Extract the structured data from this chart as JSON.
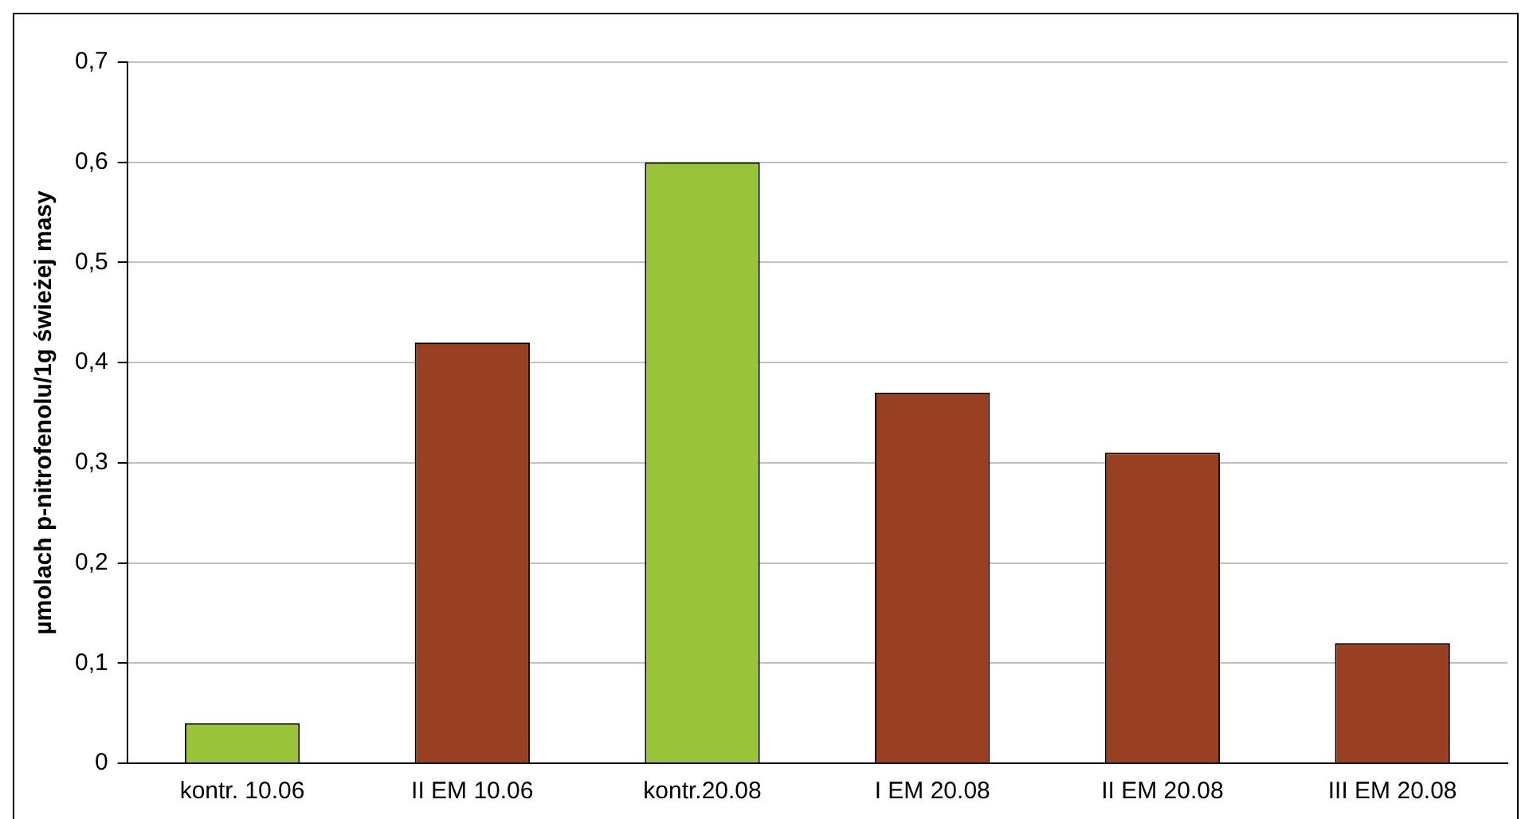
{
  "chart_data": {
    "type": "bar",
    "ylabel": "µmolach p-nitrofenolu/1g świeżej masy",
    "categories": [
      "kontr. 10.06",
      "II EM 10.06",
      "kontr.20.08",
      "I EM 20.08",
      "II EM 20.08",
      "III EM 20.08"
    ],
    "values": [
      0.04,
      0.42,
      0.6,
      0.37,
      0.31,
      0.12
    ],
    "colors": [
      "#99c43a",
      "#993f22",
      "#99c43a",
      "#993f22",
      "#993f22",
      "#993f22"
    ],
    "ylim": [
      0,
      0.7
    ],
    "yticks": [
      {
        "value": 0,
        "label": "0"
      },
      {
        "value": 0.1,
        "label": "0,1"
      },
      {
        "value": 0.2,
        "label": "0,2"
      },
      {
        "value": 0.3,
        "label": "0,3"
      },
      {
        "value": 0.4,
        "label": "0,4"
      },
      {
        "value": 0.5,
        "label": "0,5"
      },
      {
        "value": 0.6,
        "label": "0,6"
      },
      {
        "value": 0.7,
        "label": "0,7"
      }
    ],
    "grid": "y"
  }
}
